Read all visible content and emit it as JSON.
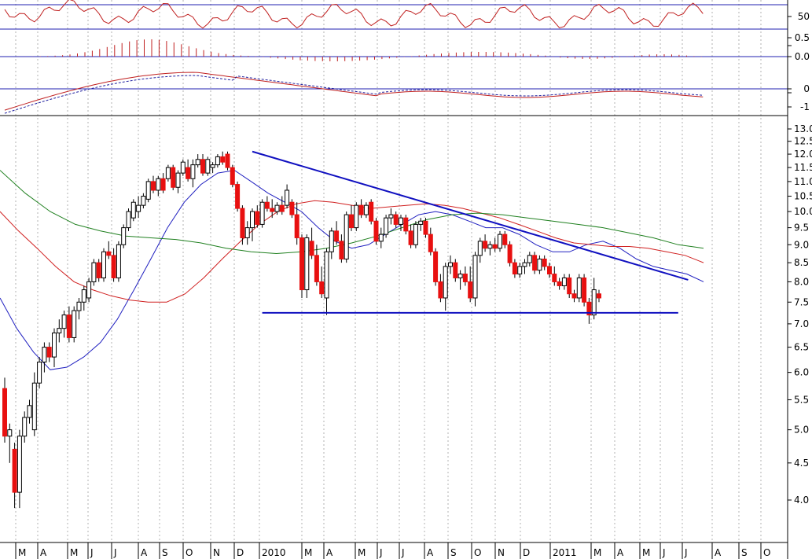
{
  "chart_data": {
    "type": "candlestick",
    "price_scale": "log",
    "x_tick_labels": [
      "M",
      "A",
      "M",
      "J",
      "J",
      "A",
      "S",
      "O",
      "N",
      "D",
      "2010",
      "M",
      "A",
      "M",
      "J",
      "J",
      "A",
      "S",
      "O",
      "N",
      "D",
      "2011",
      "M",
      "A",
      "M",
      "J",
      "J",
      "A",
      "S",
      "O"
    ],
    "y_tick_labels": [
      "13.0",
      "12.5",
      "12.0",
      "11.5",
      "11.0",
      "10.5",
      "10.0",
      "9.5",
      "9.0",
      "8.5",
      "8.0",
      "7.5",
      "7.0",
      "6.5",
      "6.0",
      "5.5",
      "5.0",
      "4.5",
      "4.0"
    ],
    "panels": {
      "rsi": {
        "ticks": [
          "50"
        ],
        "levels": [
          70,
          30
        ],
        "range": [
          0,
          100
        ]
      },
      "macd_histogram": {
        "ticks": [
          "0.0"
        ],
        "range": [
          -0.5,
          0.5
        ]
      },
      "macd": {
        "ticks": [
          "0",
          "-1"
        ],
        "range": [
          -1.3,
          1.0
        ]
      }
    },
    "moving_averages": [
      {
        "color": "#2020c0",
        "values": [
          7.6,
          6.9,
          6.4,
          6.05,
          6.1,
          6.3,
          6.6,
          7.1,
          7.8,
          8.6,
          9.5,
          10.3,
          10.9,
          11.3,
          11.4,
          11.0,
          10.6,
          10.3,
          10.0,
          9.5,
          9.1,
          8.9,
          9.0,
          9.3,
          9.6,
          9.9,
          10.0,
          9.9,
          9.7,
          9.5,
          9.5,
          9.3,
          9.0,
          8.8,
          8.8,
          9.0,
          9.1,
          8.9,
          8.6,
          8.4,
          8.3,
          8.2,
          8.0
        ]
      },
      {
        "color": "#d02020",
        "values": [
          10.0,
          9.4,
          8.9,
          8.4,
          8.0,
          7.8,
          7.65,
          7.55,
          7.5,
          7.5,
          7.7,
          8.1,
          8.6,
          9.1,
          9.6,
          10.0,
          10.25,
          10.35,
          10.3,
          10.2,
          10.1,
          10.15,
          10.2,
          10.25,
          10.2,
          10.1,
          9.95,
          9.8,
          9.6,
          9.4,
          9.2,
          9.05,
          9.0,
          8.95,
          8.95,
          8.9,
          8.8,
          8.7,
          8.5
        ]
      },
      {
        "color": "#208020",
        "values": [
          11.4,
          10.6,
          10.0,
          9.6,
          9.4,
          9.25,
          9.2,
          9.15,
          9.05,
          8.9,
          8.8,
          8.75,
          8.8,
          8.9,
          9.05,
          9.25,
          9.5,
          9.75,
          9.9,
          9.95,
          9.9,
          9.8,
          9.7,
          9.6,
          9.5,
          9.35,
          9.2,
          9.0,
          8.9
        ]
      }
    ],
    "trendlines": [
      {
        "color": "#1010c0",
        "from": {
          "bar": 50,
          "price": 12.1
        },
        "to": {
          "bar": 138,
          "price": 8.05
        }
      },
      {
        "color": "#1010c0",
        "from": {
          "bar": 52,
          "price": 7.25
        },
        "to": {
          "bar": 136,
          "price": 7.25
        }
      }
    ],
    "candles": [
      {
        "o": 5.7,
        "h": 5.9,
        "l": 4.8,
        "c": 4.9
      },
      {
        "o": 4.9,
        "h": 5.1,
        "l": 4.5,
        "c": 5.0
      },
      {
        "o": 4.7,
        "h": 4.8,
        "l": 3.9,
        "c": 4.1
      },
      {
        "o": 4.1,
        "h": 5.0,
        "l": 3.9,
        "c": 4.9
      },
      {
        "o": 4.9,
        "h": 5.3,
        "l": 4.8,
        "c": 5.2
      },
      {
        "o": 5.2,
        "h": 5.5,
        "l": 5.1,
        "c": 5.4
      },
      {
        "o": 5.0,
        "h": 6.0,
        "l": 4.9,
        "c": 5.8
      },
      {
        "o": 5.8,
        "h": 6.3,
        "l": 5.7,
        "c": 6.2
      },
      {
        "o": 6.2,
        "h": 6.6,
        "l": 6.0,
        "c": 6.5
      },
      {
        "o": 6.5,
        "h": 6.6,
        "l": 6.2,
        "c": 6.3
      },
      {
        "o": 6.3,
        "h": 6.9,
        "l": 6.1,
        "c": 6.8
      },
      {
        "o": 6.8,
        "h": 7.1,
        "l": 6.6,
        "c": 6.9
      },
      {
        "o": 6.9,
        "h": 7.3,
        "l": 6.7,
        "c": 7.2
      },
      {
        "o": 7.2,
        "h": 7.4,
        "l": 6.6,
        "c": 6.7
      },
      {
        "o": 6.7,
        "h": 7.4,
        "l": 6.6,
        "c": 7.3
      },
      {
        "o": 7.3,
        "h": 7.6,
        "l": 7.1,
        "c": 7.5
      },
      {
        "o": 7.5,
        "h": 7.9,
        "l": 7.3,
        "c": 7.8
      },
      {
        "o": 7.6,
        "h": 8.1,
        "l": 7.5,
        "c": 8.0
      },
      {
        "o": 8.0,
        "h": 8.6,
        "l": 7.9,
        "c": 8.5
      },
      {
        "o": 8.5,
        "h": 8.6,
        "l": 8.0,
        "c": 8.1
      },
      {
        "o": 8.1,
        "h": 8.9,
        "l": 8.0,
        "c": 8.8
      },
      {
        "o": 8.8,
        "h": 9.1,
        "l": 8.6,
        "c": 8.7
      },
      {
        "o": 8.7,
        "h": 8.9,
        "l": 8.0,
        "c": 8.1
      },
      {
        "o": 8.1,
        "h": 9.1,
        "l": 8.0,
        "c": 9.0
      },
      {
        "o": 9.0,
        "h": 9.6,
        "l": 8.9,
        "c": 9.5
      },
      {
        "o": 9.5,
        "h": 10.1,
        "l": 9.4,
        "c": 10.0
      },
      {
        "o": 9.8,
        "h": 10.4,
        "l": 9.7,
        "c": 10.3
      },
      {
        "o": 10.0,
        "h": 10.5,
        "l": 9.8,
        "c": 10.2
      },
      {
        "o": 10.2,
        "h": 10.6,
        "l": 10.1,
        "c": 10.5
      },
      {
        "o": 10.4,
        "h": 11.1,
        "l": 10.3,
        "c": 11.0
      },
      {
        "o": 11.0,
        "h": 11.2,
        "l": 10.6,
        "c": 10.7
      },
      {
        "o": 10.7,
        "h": 11.2,
        "l": 10.5,
        "c": 11.1
      },
      {
        "o": 11.1,
        "h": 11.3,
        "l": 10.6,
        "c": 10.7
      },
      {
        "o": 11.1,
        "h": 11.6,
        "l": 11.0,
        "c": 11.5
      },
      {
        "o": 11.5,
        "h": 11.6,
        "l": 10.7,
        "c": 10.8
      },
      {
        "o": 10.8,
        "h": 11.4,
        "l": 10.6,
        "c": 11.3
      },
      {
        "o": 11.3,
        "h": 11.8,
        "l": 11.2,
        "c": 11.7
      },
      {
        "o": 11.5,
        "h": 11.8,
        "l": 11.0,
        "c": 11.1
      },
      {
        "o": 11.1,
        "h": 11.8,
        "l": 10.8,
        "c": 11.6
      },
      {
        "o": 11.6,
        "h": 12.0,
        "l": 11.5,
        "c": 11.8
      },
      {
        "o": 11.8,
        "h": 12.0,
        "l": 11.2,
        "c": 11.3
      },
      {
        "o": 11.3,
        "h": 11.9,
        "l": 11.2,
        "c": 11.8
      },
      {
        "o": 11.5,
        "h": 11.7,
        "l": 11.3,
        "c": 11.6
      },
      {
        "o": 11.6,
        "h": 12.0,
        "l": 11.5,
        "c": 11.9
      },
      {
        "o": 11.9,
        "h": 12.1,
        "l": 11.6,
        "c": 11.7
      },
      {
        "o": 12.0,
        "h": 12.1,
        "l": 11.4,
        "c": 11.5
      },
      {
        "o": 11.5,
        "h": 11.6,
        "l": 10.8,
        "c": 10.9
      },
      {
        "o": 10.9,
        "h": 11.0,
        "l": 10.0,
        "c": 10.1
      },
      {
        "o": 10.1,
        "h": 10.2,
        "l": 9.0,
        "c": 9.2
      },
      {
        "o": 9.2,
        "h": 9.7,
        "l": 9.0,
        "c": 9.5
      },
      {
        "o": 9.5,
        "h": 10.1,
        "l": 9.1,
        "c": 10.0
      },
      {
        "o": 10.0,
        "h": 10.2,
        "l": 9.5,
        "c": 9.6
      },
      {
        "o": 9.6,
        "h": 10.4,
        "l": 9.5,
        "c": 10.3
      },
      {
        "o": 10.3,
        "h": 10.5,
        "l": 10.0,
        "c": 10.1
      },
      {
        "o": 10.1,
        "h": 10.4,
        "l": 9.8,
        "c": 10.0
      },
      {
        "o": 10.0,
        "h": 10.3,
        "l": 9.9,
        "c": 10.2
      },
      {
        "o": 10.2,
        "h": 10.5,
        "l": 9.9,
        "c": 10.0
      },
      {
        "o": 10.2,
        "h": 10.9,
        "l": 10.1,
        "c": 10.7
      },
      {
        "o": 10.3,
        "h": 10.4,
        "l": 9.8,
        "c": 9.9
      },
      {
        "o": 9.9,
        "h": 10.3,
        "l": 9.0,
        "c": 9.2
      },
      {
        "o": 9.2,
        "h": 9.3,
        "l": 7.6,
        "c": 7.8
      },
      {
        "o": 7.8,
        "h": 9.3,
        "l": 7.6,
        "c": 9.2
      },
      {
        "o": 9.1,
        "h": 9.5,
        "l": 8.6,
        "c": 8.7
      },
      {
        "o": 8.7,
        "h": 9.0,
        "l": 7.9,
        "c": 8.0
      },
      {
        "o": 8.0,
        "h": 8.4,
        "l": 7.6,
        "c": 7.7
      },
      {
        "o": 7.6,
        "h": 8.9,
        "l": 7.2,
        "c": 8.8
      },
      {
        "o": 8.8,
        "h": 9.5,
        "l": 8.6,
        "c": 9.4
      },
      {
        "o": 9.4,
        "h": 9.7,
        "l": 9.0,
        "c": 9.1
      },
      {
        "o": 9.1,
        "h": 9.3,
        "l": 8.5,
        "c": 8.6
      },
      {
        "o": 8.6,
        "h": 10.0,
        "l": 8.5,
        "c": 9.9
      },
      {
        "o": 9.9,
        "h": 10.2,
        "l": 9.4,
        "c": 9.5
      },
      {
        "o": 9.5,
        "h": 10.3,
        "l": 9.4,
        "c": 10.2
      },
      {
        "o": 10.2,
        "h": 10.4,
        "l": 9.8,
        "c": 9.9
      },
      {
        "o": 9.9,
        "h": 10.3,
        "l": 9.8,
        "c": 10.2
      },
      {
        "o": 10.3,
        "h": 10.4,
        "l": 9.6,
        "c": 9.7
      },
      {
        "o": 9.7,
        "h": 9.8,
        "l": 9.0,
        "c": 9.1
      },
      {
        "o": 9.1,
        "h": 9.5,
        "l": 8.9,
        "c": 9.3
      },
      {
        "o": 9.3,
        "h": 9.9,
        "l": 9.2,
        "c": 9.8
      },
      {
        "o": 9.8,
        "h": 10.1,
        "l": 9.6,
        "c": 9.9
      },
      {
        "o": 9.9,
        "h": 10.0,
        "l": 9.5,
        "c": 9.6
      },
      {
        "o": 9.6,
        "h": 9.9,
        "l": 9.4,
        "c": 9.8
      },
      {
        "o": 9.8,
        "h": 9.9,
        "l": 9.3,
        "c": 9.4
      },
      {
        "o": 9.4,
        "h": 9.6,
        "l": 8.9,
        "c": 9.0
      },
      {
        "o": 9.0,
        "h": 9.7,
        "l": 8.9,
        "c": 9.6
      },
      {
        "o": 9.6,
        "h": 9.8,
        "l": 9.4,
        "c": 9.7
      },
      {
        "o": 9.7,
        "h": 9.8,
        "l": 9.2,
        "c": 9.3
      },
      {
        "o": 9.3,
        "h": 9.5,
        "l": 8.7,
        "c": 8.8
      },
      {
        "o": 8.8,
        "h": 8.9,
        "l": 7.9,
        "c": 8.0
      },
      {
        "o": 8.0,
        "h": 8.2,
        "l": 7.5,
        "c": 7.6
      },
      {
        "o": 7.6,
        "h": 8.5,
        "l": 7.3,
        "c": 8.4
      },
      {
        "o": 8.4,
        "h": 8.7,
        "l": 8.2,
        "c": 8.5
      },
      {
        "o": 8.5,
        "h": 8.6,
        "l": 8.0,
        "c": 8.1
      },
      {
        "o": 8.1,
        "h": 8.3,
        "l": 7.8,
        "c": 8.2
      },
      {
        "o": 8.2,
        "h": 8.4,
        "l": 7.9,
        "c": 8.0
      },
      {
        "o": 8.0,
        "h": 8.4,
        "l": 7.5,
        "c": 7.6
      },
      {
        "o": 7.6,
        "h": 8.8,
        "l": 7.4,
        "c": 8.7
      },
      {
        "o": 8.7,
        "h": 9.2,
        "l": 8.5,
        "c": 9.1
      },
      {
        "o": 9.1,
        "h": 9.3,
        "l": 8.8,
        "c": 8.9
      },
      {
        "o": 8.9,
        "h": 9.1,
        "l": 8.7,
        "c": 9.0
      },
      {
        "o": 9.0,
        "h": 9.2,
        "l": 8.8,
        "c": 8.9
      },
      {
        "o": 8.9,
        "h": 9.4,
        "l": 8.8,
        "c": 9.3
      },
      {
        "o": 9.3,
        "h": 9.4,
        "l": 8.9,
        "c": 9.0
      },
      {
        "o": 9.0,
        "h": 9.1,
        "l": 8.4,
        "c": 8.5
      },
      {
        "o": 8.5,
        "h": 8.6,
        "l": 8.1,
        "c": 8.2
      },
      {
        "o": 8.2,
        "h": 8.5,
        "l": 8.1,
        "c": 8.4
      },
      {
        "o": 8.4,
        "h": 8.6,
        "l": 8.2,
        "c": 8.5
      },
      {
        "o": 8.5,
        "h": 8.8,
        "l": 8.4,
        "c": 8.7
      },
      {
        "o": 8.7,
        "h": 8.8,
        "l": 8.2,
        "c": 8.3
      },
      {
        "o": 8.3,
        "h": 8.7,
        "l": 8.2,
        "c": 8.6
      },
      {
        "o": 8.6,
        "h": 8.7,
        "l": 8.3,
        "c": 8.4
      },
      {
        "o": 8.4,
        "h": 8.5,
        "l": 8.1,
        "c": 8.2
      },
      {
        "o": 8.2,
        "h": 8.4,
        "l": 7.9,
        "c": 8.0
      },
      {
        "o": 8.0,
        "h": 8.1,
        "l": 7.8,
        "c": 7.9
      },
      {
        "o": 7.9,
        "h": 8.2,
        "l": 7.8,
        "c": 8.1
      },
      {
        "o": 8.1,
        "h": 8.2,
        "l": 7.6,
        "c": 7.7
      },
      {
        "o": 7.7,
        "h": 7.8,
        "l": 7.5,
        "c": 7.6
      },
      {
        "o": 7.6,
        "h": 8.2,
        "l": 7.5,
        "c": 8.1
      },
      {
        "o": 8.1,
        "h": 8.2,
        "l": 7.4,
        "c": 7.5
      },
      {
        "o": 7.5,
        "h": 7.6,
        "l": 7.0,
        "c": 7.2
      },
      {
        "o": 7.2,
        "h": 8.1,
        "l": 7.1,
        "c": 7.8
      },
      {
        "o": 7.7,
        "h": 7.8,
        "l": 7.5,
        "c": 7.6
      }
    ]
  }
}
